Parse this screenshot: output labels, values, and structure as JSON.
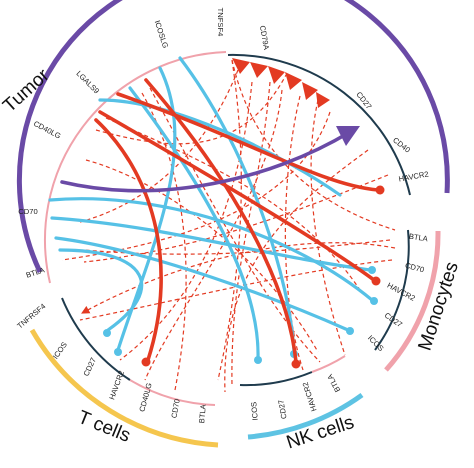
{
  "colors": {
    "tumor": "#6a4aa6",
    "monocytes": "#f0a2ab",
    "t_cells": "#f5c64e",
    "nk_cells": "#5ec3e3",
    "segment_dark": "#1f3b4d",
    "segment_pink": "#f0a2ab",
    "link_red": "#e33a22",
    "link_blue": "#56c1e6",
    "link_purple": "#6a4aa6"
  },
  "groups": [
    {
      "id": "tumor",
      "name": "Tumor"
    },
    {
      "id": "monocytes",
      "name": "Monocytes"
    },
    {
      "id": "t_cells",
      "name": "T cells"
    },
    {
      "id": "nk_cells",
      "name": "NK cells"
    }
  ],
  "genes": {
    "tnfsf4": "TNFSF4",
    "icoslg": "ICOSLG",
    "lgals9": "LGALS9",
    "cd40lg_tumor": "CD40LG",
    "cd70_tumor": "CD70",
    "btla_tumor": "BTLA",
    "cd79a": "CD79A",
    "cd27_tumor": "CD27",
    "cd40": "CD40",
    "havcr2_tumor": "HAVCR2",
    "btla_mono": "BTLA",
    "cd70_mono": "CD70",
    "havcr2_mono": "HAVCR2",
    "cd27_mono": "CD27",
    "icos_mono": "ICOS",
    "tnfrsf4": "TNFRSF4",
    "icos_t": "ICOS",
    "cd27_t": "CD27",
    "havcr2_t": "HAVCR2",
    "cd40lg_t": "CD40LG",
    "cd70_t": "CD70",
    "btla_t": "BTLA",
    "icos_nk": "ICOS",
    "cd27_nk": "CD27",
    "havcr2_nk": "HAVCR2",
    "btla_nk": "BTLA"
  }
}
